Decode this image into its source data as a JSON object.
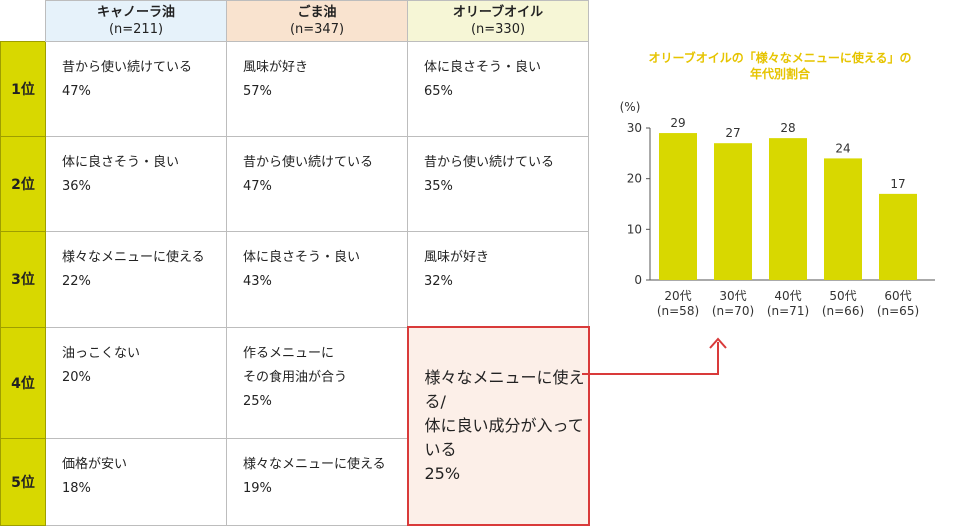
{
  "table": {
    "columns": [
      {
        "name": "キャノーラ油",
        "n": "(n=211)"
      },
      {
        "name": "ごま油",
        "n": "(n=347)"
      },
      {
        "name": "オリーブオイル",
        "n": "(n=330)"
      }
    ],
    "ranks": [
      "1位",
      "2位",
      "3位",
      "4位",
      "5位"
    ],
    "rows": [
      [
        {
          "text": "昔から使い続けている",
          "pct": "47%"
        },
        {
          "text": "風味が好き",
          "pct": "57%"
        },
        {
          "text": "体に良さそう・良い",
          "pct": "65%"
        }
      ],
      [
        {
          "text": "体に良さそう・良い",
          "pct": "36%"
        },
        {
          "text": "昔から使い続けている",
          "pct": "47%"
        },
        {
          "text": "昔から使い続けている",
          "pct": "35%"
        }
      ],
      [
        {
          "text": "様々なメニューに使える",
          "pct": "22%"
        },
        {
          "text": "体に良さそう・良い",
          "pct": "43%"
        },
        {
          "text": "風味が好き",
          "pct": "32%"
        }
      ],
      [
        {
          "text": "油っこくない",
          "pct": "20%"
        },
        {
          "text": "作るメニューに",
          "text2": "その食用油が合う",
          "pct": "25%"
        }
      ],
      [
        {
          "text": "価格が安い",
          "pct": "18%"
        },
        {
          "text": "様々なメニューに使える",
          "pct": "19%"
        }
      ]
    ],
    "merged": {
      "line1": "様々なメニューに使える/",
      "line2": "体に良い成分が入って",
      "line3": "いる",
      "pct": "25%"
    }
  },
  "colors": {
    "bar": "#d8d800",
    "accent": "#d93a3a",
    "rank": "#d8d800",
    "title": "#e6c400"
  },
  "chart_data": {
    "type": "bar",
    "title_line1": "オリーブオイルの「様々なメニューに使える」の",
    "title_line2": "年代別割合",
    "unit": "(%)",
    "categories": [
      "20代",
      "30代",
      "40代",
      "50代",
      "60代"
    ],
    "category_n": [
      "(n=58)",
      "(n=70)",
      "(n=71)",
      "(n=66)",
      "(n=65)"
    ],
    "values": [
      29,
      27,
      28,
      24,
      17
    ],
    "ylim": [
      0,
      30
    ],
    "yticks": [
      0,
      10,
      20,
      30
    ],
    "grid": false
  }
}
